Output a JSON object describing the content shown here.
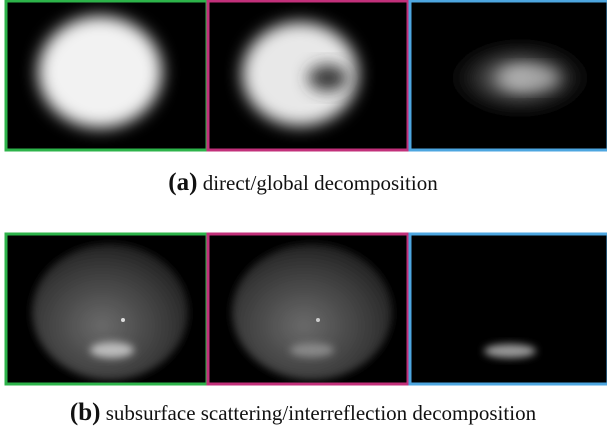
{
  "figure": {
    "rows": [
      {
        "label": "(a)",
        "caption": "direct/global decomposition"
      },
      {
        "label": "(b)",
        "caption": "subsurface scattering/interreflection decomposition"
      }
    ]
  }
}
